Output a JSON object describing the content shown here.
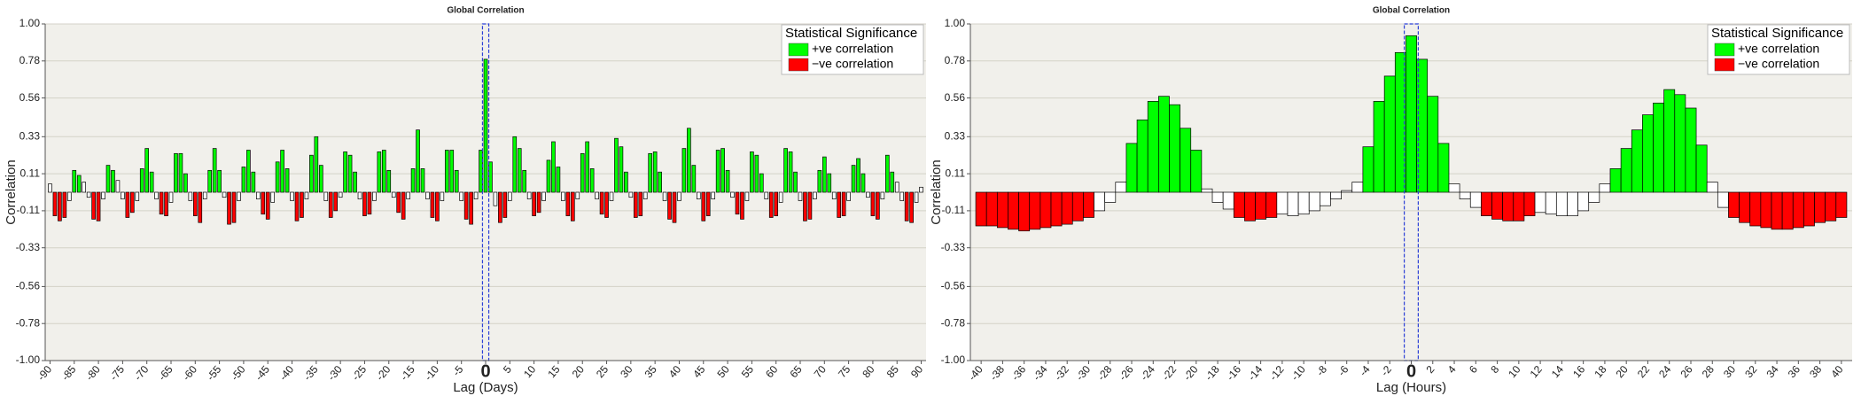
{
  "chart_data": [
    {
      "type": "bar",
      "title": "Global Correlation",
      "x_label": "Lag (Days)",
      "y_label": "Correlation",
      "legend": {
        "title": "Statistical Significance",
        "corner": "top-right",
        "entries": [
          {
            "label": "+ve correlation",
            "color": "#00ff00"
          },
          {
            "label": "−ve correlation",
            "color": "#ff0000"
          }
        ]
      },
      "xlim": [
        -91,
        91
      ],
      "ylim": [
        -1,
        1
      ],
      "grid": true,
      "yticks": [
        {
          "value": 1,
          "label": "1.00"
        },
        0.78,
        0.56,
        0.33,
        0.11,
        -0.11,
        -0.33,
        -0.56,
        -0.78,
        {
          "value": -1,
          "label": "-1.00"
        }
      ],
      "xticks": [
        -90,
        -85,
        -80,
        -75,
        -70,
        -65,
        -60,
        -55,
        -50,
        -45,
        -40,
        -35,
        -30,
        -25,
        -20,
        -15,
        -10,
        -5,
        0,
        5,
        10,
        15,
        20,
        25,
        30,
        35,
        40,
        45,
        50,
        55,
        60,
        65,
        70,
        75,
        80,
        85,
        90
      ],
      "x": [
        -90,
        -89,
        -88,
        -87,
        -86,
        -85,
        -84,
        -83,
        -82,
        -81,
        -80,
        -79,
        -78,
        -77,
        -76,
        -75,
        -74,
        -73,
        -72,
        -71,
        -70,
        -69,
        -68,
        -67,
        -66,
        -65,
        -64,
        -63,
        -62,
        -61,
        -60,
        -59,
        -58,
        -57,
        -56,
        -55,
        -54,
        -53,
        -52,
        -51,
        -50,
        -49,
        -48,
        -47,
        -46,
        -45,
        -44,
        -43,
        -42,
        -41,
        -40,
        -39,
        -38,
        -37,
        -36,
        -35,
        -34,
        -33,
        -32,
        -31,
        -30,
        -29,
        -28,
        -27,
        -26,
        -25,
        -24,
        -23,
        -22,
        -21,
        -20,
        -19,
        -18,
        -17,
        -16,
        -15,
        -14,
        -13,
        -12,
        -11,
        -10,
        -9,
        -8,
        -7,
        -6,
        -5,
        -4,
        -3,
        -2,
        -1,
        0,
        1,
        2,
        3,
        4,
        5,
        6,
        7,
        8,
        9,
        10,
        11,
        12,
        13,
        14,
        15,
        16,
        17,
        18,
        19,
        20,
        21,
        22,
        23,
        24,
        25,
        26,
        27,
        28,
        29,
        30,
        31,
        32,
        33,
        34,
        35,
        36,
        37,
        38,
        39,
        40,
        41,
        42,
        43,
        44,
        45,
        46,
        47,
        48,
        49,
        50,
        51,
        52,
        53,
        54,
        55,
        56,
        57,
        58,
        59,
        60,
        61,
        62,
        63,
        64,
        65,
        66,
        67,
        68,
        69,
        70,
        71,
        72,
        73,
        74,
        75,
        76,
        77,
        78,
        79,
        80,
        81,
        82,
        83,
        84,
        85,
        86,
        87,
        88,
        89,
        90
      ],
      "values": [
        0.05,
        -0.14,
        -0.17,
        -0.15,
        -0.05,
        0.13,
        0.1,
        0.06,
        -0.03,
        -0.16,
        -0.17,
        -0.04,
        0.16,
        0.13,
        0.07,
        -0.04,
        -0.15,
        -0.12,
        -0.05,
        0.14,
        0.26,
        0.12,
        -0.04,
        -0.13,
        -0.14,
        -0.06,
        0.23,
        0.23,
        0.11,
        -0.05,
        -0.14,
        -0.18,
        -0.04,
        0.13,
        0.26,
        0.13,
        -0.03,
        -0.19,
        -0.18,
        -0.05,
        0.15,
        0.25,
        0.12,
        -0.04,
        -0.13,
        -0.16,
        -0.06,
        0.18,
        0.25,
        0.14,
        -0.05,
        -0.17,
        -0.15,
        -0.04,
        0.22,
        0.33,
        0.16,
        -0.05,
        -0.15,
        -0.11,
        -0.03,
        0.24,
        0.22,
        0.12,
        -0.04,
        -0.14,
        -0.13,
        -0.05,
        0.24,
        0.25,
        0.13,
        -0.03,
        -0.12,
        -0.16,
        -0.04,
        0.14,
        0.37,
        0.14,
        -0.04,
        -0.15,
        -0.17,
        -0.05,
        0.25,
        0.25,
        0.13,
        -0.05,
        -0.16,
        -0.19,
        -0.04,
        0.25,
        0.79,
        0.18,
        -0.08,
        -0.18,
        -0.15,
        -0.05,
        0.33,
        0.26,
        0.13,
        -0.04,
        -0.14,
        -0.12,
        -0.05,
        0.19,
        0.3,
        0.15,
        -0.05,
        -0.14,
        -0.17,
        -0.04,
        0.23,
        0.3,
        0.14,
        -0.04,
        -0.13,
        -0.15,
        -0.05,
        0.32,
        0.27,
        0.12,
        -0.03,
        -0.15,
        -0.14,
        -0.04,
        0.23,
        0.24,
        0.12,
        -0.05,
        -0.16,
        -0.18,
        -0.05,
        0.26,
        0.38,
        0.16,
        -0.04,
        -0.17,
        -0.14,
        -0.04,
        0.25,
        0.26,
        0.13,
        -0.03,
        -0.13,
        -0.16,
        -0.05,
        0.24,
        0.22,
        0.11,
        -0.04,
        -0.15,
        -0.14,
        -0.06,
        0.26,
        0.24,
        0.12,
        -0.05,
        -0.17,
        -0.16,
        -0.04,
        0.13,
        0.21,
        0.11,
        -0.04,
        -0.15,
        -0.14,
        -0.05,
        0.16,
        0.2,
        0.11,
        -0.03,
        -0.14,
        -0.16,
        -0.04,
        0.22,
        0.12,
        0.06,
        -0.05,
        -0.17,
        -0.18,
        -0.06,
        0.03
      ],
      "colors": [
        "#fff",
        "#f00",
        "#f00",
        "#f00",
        "#fff",
        "#0f0",
        "#0f0",
        "#fff",
        "#fff",
        "#f00",
        "#f00",
        "#fff",
        "#0f0",
        "#0f0",
        "#fff",
        "#fff",
        "#f00",
        "#f00",
        "#fff",
        "#0f0",
        "#0f0",
        "#0f0",
        "#fff",
        "#f00",
        "#f00",
        "#fff",
        "#0f0",
        "#0f0",
        "#0f0",
        "#fff",
        "#f00",
        "#f00",
        "#fff",
        "#0f0",
        "#0f0",
        "#0f0",
        "#fff",
        "#f00",
        "#f00",
        "#fff",
        "#0f0",
        "#0f0",
        "#0f0",
        "#fff",
        "#f00",
        "#f00",
        "#fff",
        "#0f0",
        "#0f0",
        "#0f0",
        "#fff",
        "#f00",
        "#f00",
        "#fff",
        "#0f0",
        "#0f0",
        "#0f0",
        "#fff",
        "#f00",
        "#f00",
        "#fff",
        "#0f0",
        "#0f0",
        "#0f0",
        "#fff",
        "#f00",
        "#f00",
        "#fff",
        "#0f0",
        "#0f0",
        "#0f0",
        "#fff",
        "#f00",
        "#f00",
        "#fff",
        "#0f0",
        "#0f0",
        "#0f0",
        "#fff",
        "#f00",
        "#f00",
        "#fff",
        "#0f0",
        "#0f0",
        "#0f0",
        "#fff",
        "#f00",
        "#f00",
        "#fff",
        "#0f0",
        "#0f0",
        "#0f0",
        "#fff",
        "#f00",
        "#f00",
        "#fff",
        "#0f0",
        "#0f0",
        "#0f0",
        "#fff",
        "#f00",
        "#f00",
        "#fff",
        "#0f0",
        "#0f0",
        "#0f0",
        "#fff",
        "#f00",
        "#f00",
        "#fff",
        "#0f0",
        "#0f0",
        "#0f0",
        "#fff",
        "#f00",
        "#f00",
        "#fff",
        "#0f0",
        "#0f0",
        "#0f0",
        "#fff",
        "#f00",
        "#f00",
        "#fff",
        "#0f0",
        "#0f0",
        "#0f0",
        "#fff",
        "#f00",
        "#f00",
        "#fff",
        "#0f0",
        "#0f0",
        "#0f0",
        "#fff",
        "#f00",
        "#f00",
        "#fff",
        "#0f0",
        "#0f0",
        "#0f0",
        "#fff",
        "#f00",
        "#f00",
        "#fff",
        "#0f0",
        "#0f0",
        "#0f0",
        "#fff",
        "#f00",
        "#f00",
        "#fff",
        "#0f0",
        "#0f0",
        "#0f0",
        "#fff",
        "#f00",
        "#f00",
        "#fff",
        "#0f0",
        "#0f0",
        "#0f0",
        "#fff",
        "#f00",
        "#f00",
        "#fff",
        "#0f0",
        "#0f0",
        "#0f0",
        "#fff",
        "#f00",
        "#f00",
        "#fff",
        "#0f0",
        "#0f0",
        "#fff",
        "#fff",
        "#f00",
        "#f00",
        "#fff",
        "#fff"
      ]
    },
    {
      "type": "bar",
      "title": "Global Correlation",
      "x_label": "Lag (Hours)",
      "y_label": "Correlation",
      "legend": {
        "title": "Statistical Significance",
        "corner": "top-right",
        "entries": [
          {
            "label": "+ve correlation",
            "color": "#00ff00"
          },
          {
            "label": "−ve correlation",
            "color": "#ff0000"
          }
        ]
      },
      "xlim": [
        -41,
        41
      ],
      "ylim": [
        -1,
        1
      ],
      "grid": true,
      "yticks": [
        {
          "value": 1,
          "label": "1.00"
        },
        0.78,
        0.56,
        0.33,
        0.11,
        -0.11,
        -0.33,
        -0.56,
        -0.78,
        {
          "value": -1,
          "label": "-1.00"
        }
      ],
      "xticks": [
        -40,
        -38,
        -36,
        -34,
        -32,
        -30,
        -28,
        -26,
        -24,
        -22,
        -20,
        -18,
        -16,
        -14,
        -12,
        -10,
        -8,
        -6,
        -4,
        -2,
        0,
        2,
        4,
        6,
        8,
        10,
        12,
        14,
        16,
        18,
        20,
        22,
        24,
        26,
        28,
        30,
        32,
        34,
        36,
        38,
        40
      ],
      "x": [
        -40,
        -39,
        -38,
        -37,
        -36,
        -35,
        -34,
        -33,
        -32,
        -31,
        -30,
        -29,
        -28,
        -27,
        -26,
        -25,
        -24,
        -23,
        -22,
        -21,
        -20,
        -19,
        -18,
        -17,
        -16,
        -15,
        -14,
        -13,
        -12,
        -11,
        -10,
        -9,
        -8,
        -7,
        -6,
        -5,
        -4,
        -3,
        -2,
        -1,
        0,
        1,
        2,
        3,
        4,
        5,
        6,
        7,
        8,
        9,
        10,
        11,
        12,
        13,
        14,
        15,
        16,
        17,
        18,
        19,
        20,
        21,
        22,
        23,
        24,
        25,
        26,
        27,
        28,
        29,
        30,
        31,
        32,
        33,
        34,
        35,
        36,
        37,
        38,
        39,
        40
      ],
      "values": [
        -0.2,
        -0.2,
        -0.21,
        -0.22,
        -0.23,
        -0.22,
        -0.21,
        -0.2,
        -0.19,
        -0.17,
        -0.15,
        -0.11,
        -0.06,
        0.06,
        0.29,
        0.43,
        0.54,
        0.57,
        0.52,
        0.38,
        0.25,
        0.02,
        -0.06,
        -0.1,
        -0.15,
        -0.17,
        -0.16,
        -0.15,
        -0.13,
        -0.14,
        -0.13,
        -0.11,
        -0.08,
        -0.04,
        0.01,
        0.06,
        0.27,
        0.54,
        0.69,
        0.83,
        0.93,
        0.79,
        0.57,
        0.29,
        0.05,
        -0.04,
        -0.09,
        -0.14,
        -0.16,
        -0.17,
        -0.17,
        -0.14,
        -0.12,
        -0.13,
        -0.14,
        -0.14,
        -0.11,
        -0.06,
        0.05,
        0.14,
        0.26,
        0.37,
        0.46,
        0.53,
        0.61,
        0.58,
        0.5,
        0.28,
        0.06,
        -0.09,
        -0.15,
        -0.18,
        -0.2,
        -0.21,
        -0.22,
        -0.22,
        -0.21,
        -0.2,
        -0.18,
        -0.17,
        -0.15
      ],
      "colors": [
        "#f00",
        "#f00",
        "#f00",
        "#f00",
        "#f00",
        "#f00",
        "#f00",
        "#f00",
        "#f00",
        "#f00",
        "#f00",
        "#fff",
        "#fff",
        "#fff",
        "#0f0",
        "#0f0",
        "#0f0",
        "#0f0",
        "#0f0",
        "#0f0",
        "#0f0",
        "#fff",
        "#fff",
        "#fff",
        "#f00",
        "#f00",
        "#f00",
        "#f00",
        "#fff",
        "#fff",
        "#fff",
        "#fff",
        "#fff",
        "#fff",
        "#fff",
        "#fff",
        "#0f0",
        "#0f0",
        "#0f0",
        "#0f0",
        "#0f0",
        "#0f0",
        "#0f0",
        "#0f0",
        "#fff",
        "#fff",
        "#fff",
        "#f00",
        "#f00",
        "#f00",
        "#f00",
        "#f00",
        "#fff",
        "#fff",
        "#fff",
        "#fff",
        "#fff",
        "#fff",
        "#fff",
        "#0f0",
        "#0f0",
        "#0f0",
        "#0f0",
        "#0f0",
        "#0f0",
        "#0f0",
        "#0f0",
        "#0f0",
        "#fff",
        "#fff",
        "#f00",
        "#f00",
        "#f00",
        "#f00",
        "#f00",
        "#f00",
        "#f00",
        "#f00",
        "#f00",
        "#f00",
        "#f00"
      ]
    }
  ]
}
